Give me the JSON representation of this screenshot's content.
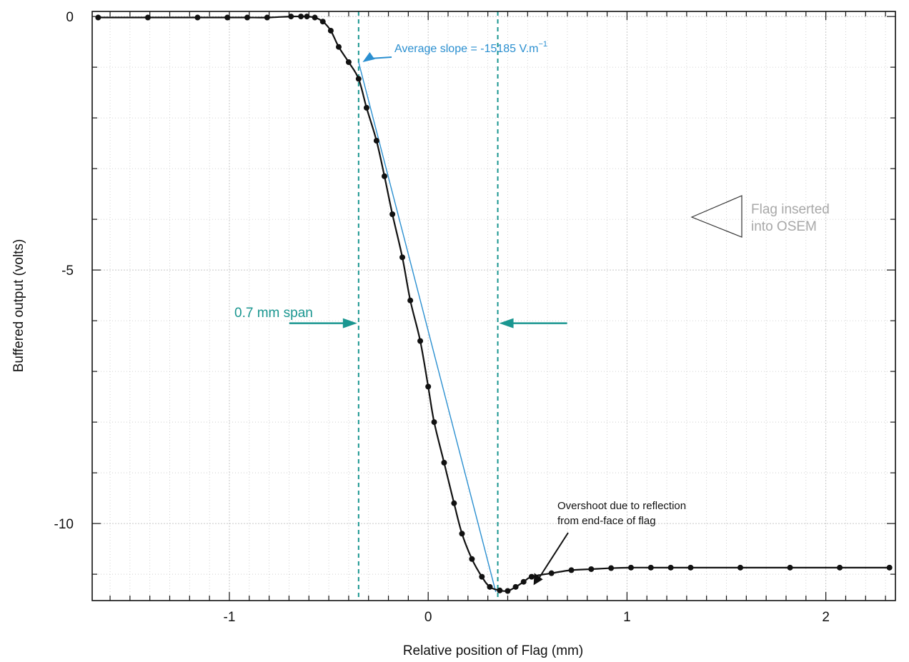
{
  "chart_data": {
    "type": "scatter",
    "title": "",
    "xlabel": "Relative position of Flag (mm)",
    "ylabel": "Buffered output (volts)",
    "xlim": [
      -1.69,
      2.35
    ],
    "ylim": [
      -11.52,
      0.1
    ],
    "x_ticks": [
      {
        "value": -1,
        "label": "-1"
      },
      {
        "value": 0,
        "label": "0"
      },
      {
        "value": 1,
        "label": "1"
      },
      {
        "value": 2,
        "label": "2"
      }
    ],
    "y_ticks": [
      {
        "value": 0,
        "label": "0"
      },
      {
        "value": -5,
        "label": "-5"
      },
      {
        "value": -10,
        "label": "-10"
      }
    ],
    "grid": true,
    "series": [
      {
        "x": [
          -1.66,
          -1.41,
          -1.16,
          -1.01,
          -0.91,
          -0.81,
          -0.69,
          -0.64,
          -0.61,
          -0.57,
          -0.53,
          -0.49,
          -0.45,
          -0.4,
          -0.35,
          -0.31,
          -0.26,
          -0.22,
          -0.18,
          -0.13,
          -0.09,
          -0.04,
          0.0,
          0.03,
          0.08,
          0.13,
          0.17,
          0.22,
          0.27,
          0.31,
          0.36,
          0.4,
          0.44,
          0.48,
          0.52,
          0.62,
          0.72,
          0.82,
          0.92,
          1.02,
          1.12,
          1.22,
          1.32,
          1.57,
          1.82,
          2.07,
          2.32
        ],
        "y": [
          -0.02,
          -0.02,
          -0.02,
          -0.02,
          -0.02,
          -0.02,
          0.0,
          0.0,
          0.0,
          -0.02,
          -0.1,
          -0.28,
          -0.6,
          -0.9,
          -1.23,
          -1.8,
          -2.45,
          -3.15,
          -3.9,
          -4.75,
          -5.6,
          -6.4,
          -7.3,
          -8.0,
          -8.8,
          -9.6,
          -10.2,
          -10.7,
          -11.05,
          -11.25,
          -11.32,
          -11.33,
          -11.25,
          -11.15,
          -11.05,
          -10.98,
          -10.92,
          -10.9,
          -10.88,
          -10.87,
          -10.87,
          -10.87,
          -10.87,
          -10.87,
          -10.87,
          -10.87,
          -10.87
        ]
      }
    ],
    "fit_line": {
      "slope_x_range": [
        -0.35,
        0.34
      ],
      "y_range": [
        -0.9,
        -11.35
      ]
    },
    "span_markers": {
      "x": [
        -0.35,
        0.35
      ],
      "y_arrow": -6.05,
      "color": "#1a9690"
    },
    "annotations": {
      "slope_label": "Average slope = -15185 V.m",
      "slope_exponent": "−1",
      "span_label": "0.7 mm span",
      "overshoot_line1": "Overshoot due to reflection",
      "overshoot_line2": "from end-face of flag",
      "flag_line1": "Flag inserted",
      "flag_line2": "into OSEM"
    },
    "colors": {
      "data": "#111111",
      "fit": "#2a8fd0",
      "span": "#1a9690",
      "flag_text": "#a8a8a8",
      "grid": "#c6c6c6"
    }
  }
}
